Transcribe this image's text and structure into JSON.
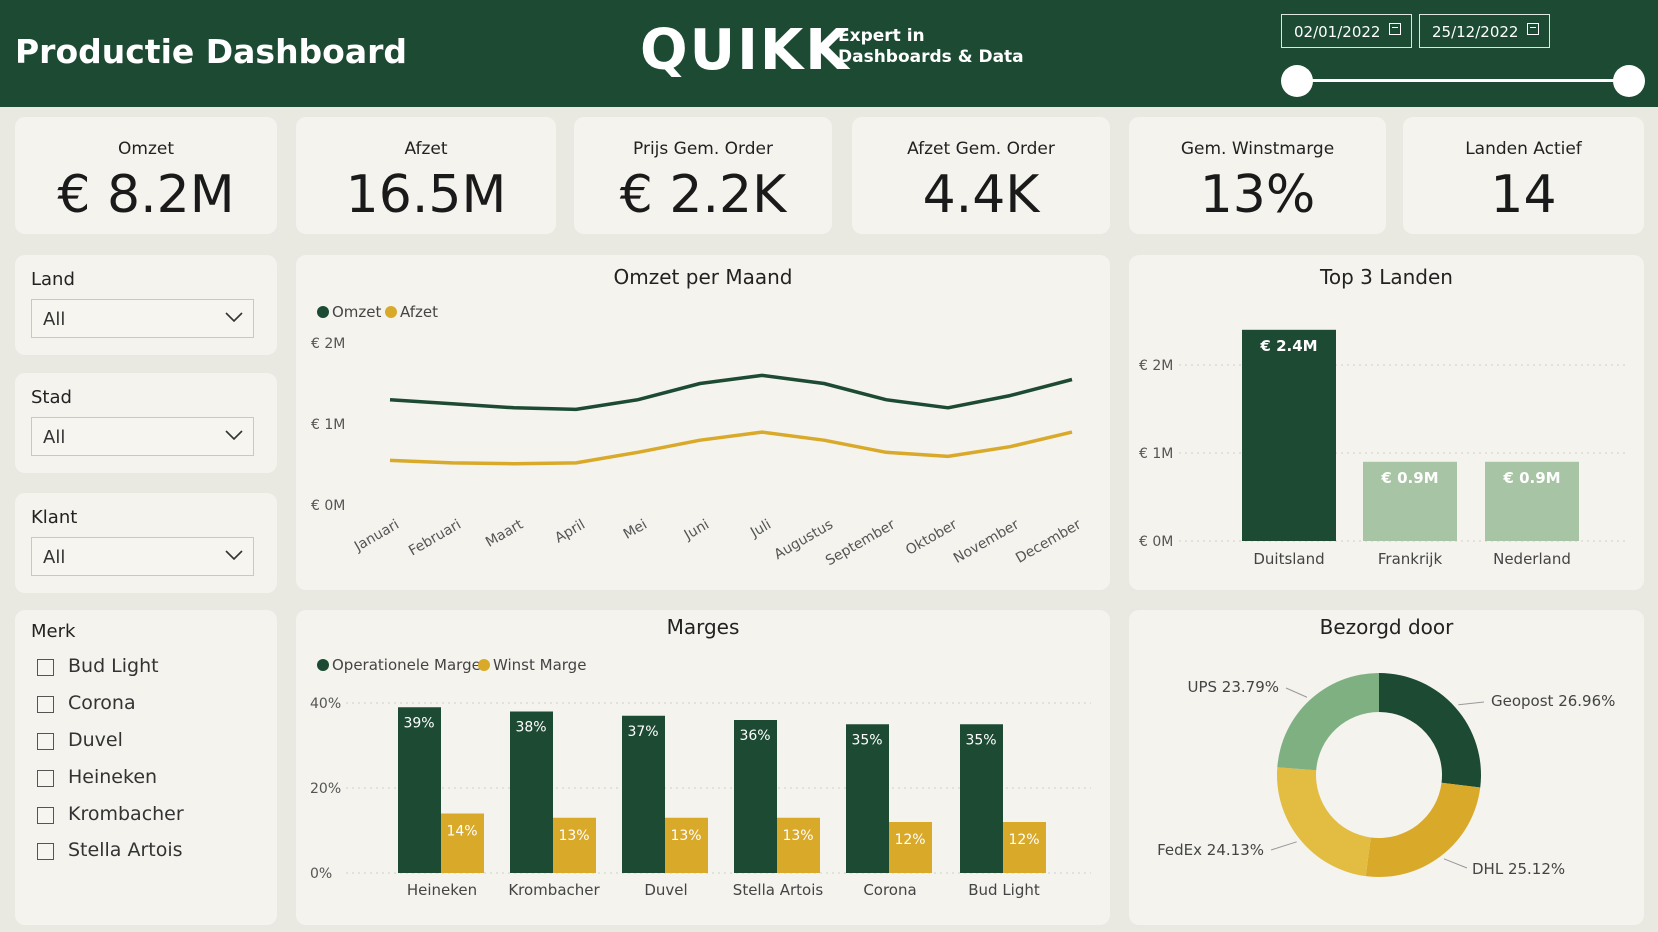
{
  "header": {
    "title": "Productie Dashboard",
    "logo": "QUIKK",
    "tagline_line1": "Expert in",
    "tagline_line2": "Dashboards & Data",
    "start_date": "02/01/2022",
    "end_date": "25/12/2022"
  },
  "kpis": [
    {
      "label": "Omzet",
      "value": "€ 8.2M"
    },
    {
      "label": "Afzet",
      "value": "16.5M"
    },
    {
      "label": "Prijs Gem. Order",
      "value": "€ 2.2K"
    },
    {
      "label": "Afzet Gem. Order",
      "value": "4.4K"
    },
    {
      "label": "Gem. Winstmarge",
      "value": "13%"
    },
    {
      "label": "Landen Actief",
      "value": "14"
    }
  ],
  "filters": {
    "land": {
      "label": "Land",
      "value": "All"
    },
    "stad": {
      "label": "Stad",
      "value": "All"
    },
    "klant": {
      "label": "Klant",
      "value": "All"
    },
    "merk": {
      "label": "Merk",
      "options": [
        "Bud Light",
        "Corona",
        "Duvel",
        "Heineken",
        "Krombacher",
        "Stella Artois"
      ]
    }
  },
  "colors": {
    "dark_green": "#1d4a33",
    "gold": "#d9a92a",
    "light_green": "#a7c4a4",
    "mid_green": "#7fb082"
  },
  "chart_data": [
    {
      "type": "line",
      "title": "Omzet per Maand",
      "categories": [
        "Januari",
        "Februari",
        "Maart",
        "April",
        "Mei",
        "Juni",
        "Juli",
        "Augustus",
        "September",
        "Oktober",
        "November",
        "December"
      ],
      "series": [
        {
          "name": "Omzet",
          "values": [
            1.3,
            1.25,
            1.2,
            1.18,
            1.3,
            1.5,
            1.6,
            1.5,
            1.3,
            1.2,
            1.35,
            1.55
          ]
        },
        {
          "name": "Afzet",
          "values": [
            0.55,
            0.52,
            0.51,
            0.52,
            0.65,
            0.8,
            0.9,
            0.8,
            0.65,
            0.6,
            0.72,
            0.9
          ]
        }
      ],
      "y_ticks": [
        "€ 2M",
        "€ 1M",
        "€ 0M"
      ],
      "ylim": [
        0,
        2
      ],
      "legend": "top-left"
    },
    {
      "type": "bar",
      "title": "Top 3 Landen",
      "categories": [
        "Duitsland",
        "Frankrijk",
        "Nederland"
      ],
      "values": [
        2.4,
        0.9,
        0.9
      ],
      "labels": [
        "€ 2.4M",
        "€ 0.9M",
        "€ 0.9M"
      ],
      "y_ticks": [
        "€ 2M",
        "€ 1M",
        "€ 0M"
      ],
      "ylim": [
        0,
        2.4
      ]
    },
    {
      "type": "bar",
      "title": "Marges",
      "categories": [
        "Heineken",
        "Krombacher",
        "Duvel",
        "Stella Artois",
        "Corona",
        "Bud Light"
      ],
      "series": [
        {
          "name": "Operationele Marge",
          "values": [
            39,
            38,
            37,
            36,
            35,
            35
          ],
          "labels": [
            "39%",
            "38%",
            "37%",
            "36%",
            "35%",
            "35%"
          ]
        },
        {
          "name": "Winst Marge",
          "values": [
            14,
            13,
            13,
            13,
            12,
            12
          ],
          "labels": [
            "14%",
            "13%",
            "13%",
            "13%",
            "12%",
            "12%"
          ]
        }
      ],
      "y_ticks": [
        "40%",
        "20%",
        "0%"
      ],
      "ylim": [
        0,
        40
      ],
      "legend": "top-left"
    },
    {
      "type": "pie",
      "title": "Bezorgd door",
      "slices": [
        {
          "name": "Geopost",
          "value": 26.96,
          "label": "Geopost 26.96%"
        },
        {
          "name": "DHL",
          "value": 25.12,
          "label": "DHL 25.12%"
        },
        {
          "name": "FedEx",
          "value": 24.13,
          "label": "FedEx 24.13%"
        },
        {
          "name": "UPS",
          "value": 23.79,
          "label": "UPS 23.79%"
        }
      ]
    }
  ]
}
